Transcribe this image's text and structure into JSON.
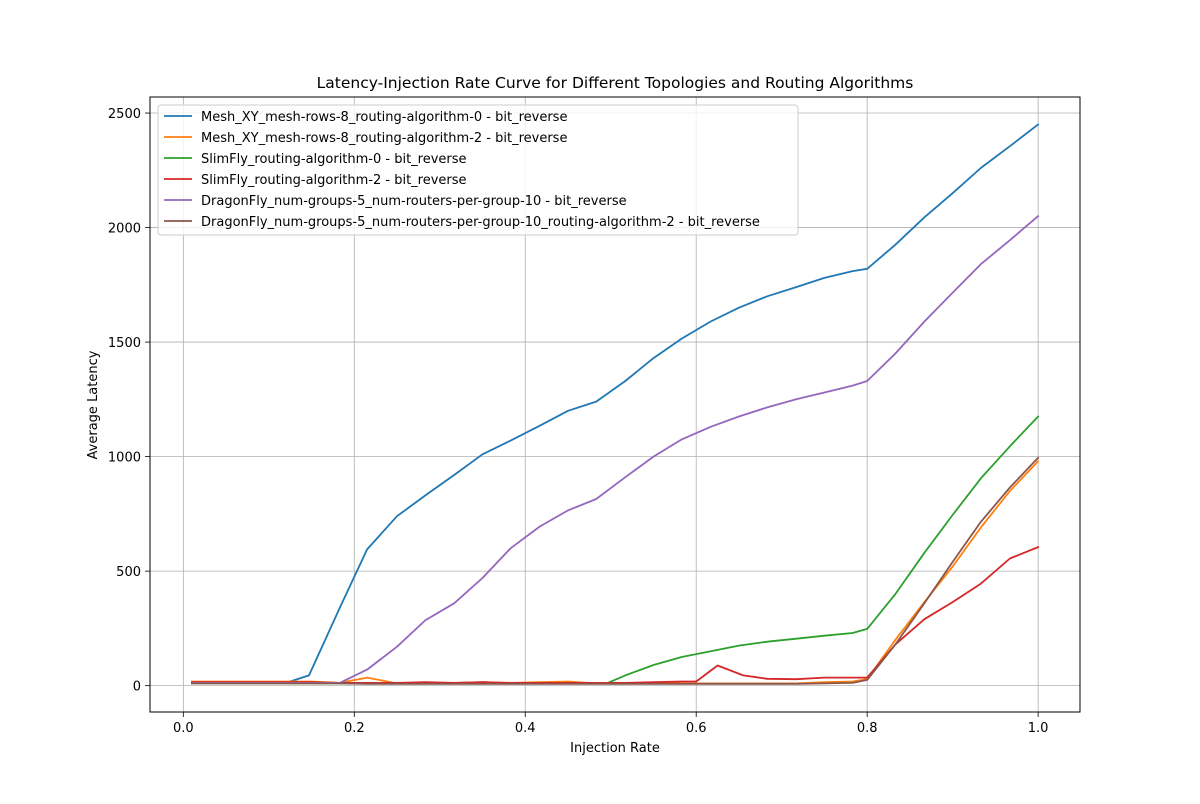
{
  "chart_data": {
    "type": "line",
    "title": "Latency-Injection Rate Curve for Different Topologies and Routing Algorithms",
    "xlabel": "Injection Rate",
    "ylabel": "Average Latency",
    "xlim": [
      -0.039,
      1.049
    ],
    "ylim": [
      -115,
      2570
    ],
    "xticks": [
      0.0,
      0.2,
      0.4,
      0.6,
      0.8,
      1.0
    ],
    "xtick_labels": [
      "0.0",
      "0.2",
      "0.4",
      "0.6",
      "0.8",
      "1.0"
    ],
    "yticks": [
      0,
      500,
      1000,
      1500,
      2000,
      2500
    ],
    "ytick_labels": [
      "0",
      "500",
      "1000",
      "1500",
      "2000",
      "2500"
    ],
    "grid": true,
    "legend_position": "upper-left",
    "x": [
      0.01,
      0.0478,
      0.0856,
      0.1233,
      0.1611,
      0.1989,
      0.2367,
      0.2744,
      0.3122,
      0.35,
      0.3878,
      0.4256,
      0.4633,
      0.5011,
      0.5389,
      0.5767,
      0.6144,
      0.6522,
      0.69,
      0.7278,
      0.7656,
      0.8033,
      0.8411,
      0.8789,
      0.9167,
      0.9544,
      0.9922
    ],
    "series": [
      {
        "name": "Mesh_XY_mesh-rows-8_routing-algorithm-0 - bit_reverse",
        "color": "#1f77b4",
        "x": [
          0.01,
          0.05,
          0.09,
          0.12,
          0.147,
          0.183,
          0.215,
          0.25,
          0.283,
          0.317,
          0.35,
          0.383,
          0.417,
          0.45,
          0.483,
          0.517,
          0.55,
          0.583,
          0.617,
          0.65,
          0.683,
          0.717,
          0.75,
          0.783,
          0.8,
          0.833,
          0.867,
          0.9,
          0.933,
          0.967,
          1.0
        ],
        "values": [
          12,
          12,
          12,
          12,
          45,
          340,
          595,
          740,
          830,
          920,
          1010,
          1070,
          1135,
          1200,
          1240,
          1330,
          1430,
          1515,
          1590,
          1650,
          1700,
          1740,
          1780,
          1810,
          1820,
          1925,
          2045,
          2150,
          2260,
          2355,
          2450
        ]
      },
      {
        "name": "Mesh_XY_mesh-rows-8_routing-algorithm-2 - bit_reverse",
        "color": "#ff7f0e",
        "x": [
          0.01,
          0.05,
          0.09,
          0.12,
          0.15,
          0.183,
          0.215,
          0.25,
          0.283,
          0.317,
          0.35,
          0.383,
          0.417,
          0.45,
          0.483,
          0.517,
          0.55,
          0.583,
          0.617,
          0.65,
          0.683,
          0.717,
          0.75,
          0.783,
          0.8,
          0.833,
          0.867,
          0.9,
          0.933,
          0.967,
          1.0
        ],
        "values": [
          18,
          18,
          18,
          18,
          18,
          12,
          35,
          10,
          12,
          12,
          15,
          12,
          15,
          18,
          10,
          12,
          12,
          10,
          10,
          10,
          10,
          10,
          15,
          18,
          28,
          200,
          365,
          520,
          690,
          850,
          980
        ]
      },
      {
        "name": "SlimFly_routing-algorithm-0 - bit_reverse",
        "color": "#2ca02c",
        "x": [
          0.01,
          0.05,
          0.09,
          0.12,
          0.15,
          0.183,
          0.215,
          0.25,
          0.283,
          0.317,
          0.35,
          0.383,
          0.417,
          0.45,
          0.483,
          0.495,
          0.517,
          0.55,
          0.583,
          0.617,
          0.65,
          0.683,
          0.717,
          0.75,
          0.783,
          0.8,
          0.833,
          0.867,
          0.9,
          0.933,
          0.967,
          1.0
        ],
        "values": [
          10,
          10,
          10,
          10,
          10,
          10,
          10,
          10,
          10,
          10,
          10,
          10,
          10,
          10,
          10,
          10,
          45,
          90,
          125,
          150,
          175,
          192,
          205,
          218,
          230,
          248,
          400,
          580,
          745,
          905,
          1045,
          1175
        ]
      },
      {
        "name": "SlimFly_routing-algorithm-2 - bit_reverse",
        "color": "#d62728",
        "x": [
          0.01,
          0.05,
          0.09,
          0.12,
          0.15,
          0.183,
          0.215,
          0.25,
          0.283,
          0.317,
          0.35,
          0.383,
          0.417,
          0.45,
          0.483,
          0.517,
          0.55,
          0.583,
          0.6,
          0.625,
          0.655,
          0.683,
          0.717,
          0.75,
          0.783,
          0.8,
          0.833,
          0.867,
          0.9,
          0.933,
          0.967,
          1.0
        ],
        "values": [
          15,
          15,
          15,
          15,
          15,
          12,
          12,
          12,
          15,
          12,
          15,
          12,
          12,
          12,
          12,
          12,
          15,
          18,
          18,
          88,
          45,
          30,
          28,
          35,
          35,
          35,
          180,
          290,
          365,
          445,
          555,
          605
        ]
      },
      {
        "name": "DragonFly_num-groups-5_num-routers-per-group-10 - bit_reverse",
        "color": "#9467bd",
        "x": [
          0.01,
          0.05,
          0.09,
          0.12,
          0.15,
          0.183,
          0.215,
          0.25,
          0.283,
          0.317,
          0.35,
          0.383,
          0.417,
          0.45,
          0.483,
          0.517,
          0.55,
          0.583,
          0.617,
          0.65,
          0.683,
          0.717,
          0.75,
          0.783,
          0.8,
          0.833,
          0.867,
          0.9,
          0.933,
          0.967,
          1.0
        ],
        "values": [
          12,
          12,
          12,
          12,
          12,
          12,
          70,
          170,
          285,
          360,
          470,
          600,
          695,
          765,
          815,
          910,
          1000,
          1075,
          1130,
          1175,
          1215,
          1250,
          1280,
          1310,
          1330,
          1450,
          1590,
          1715,
          1840,
          1945,
          2050
        ]
      },
      {
        "name": "DragonFly_num-groups-5_num-routers-per-group-10_routing-algorithm-2 - bit_reverse",
        "color": "#8c564b",
        "x": [
          0.01,
          0.05,
          0.09,
          0.12,
          0.15,
          0.183,
          0.215,
          0.25,
          0.283,
          0.317,
          0.35,
          0.383,
          0.417,
          0.45,
          0.483,
          0.517,
          0.55,
          0.583,
          0.617,
          0.65,
          0.683,
          0.717,
          0.75,
          0.783,
          0.8,
          0.833,
          0.867,
          0.9,
          0.933,
          0.967,
          1.0
        ],
        "values": [
          10,
          10,
          10,
          10,
          10,
          10,
          8,
          8,
          8,
          8,
          8,
          8,
          8,
          8,
          8,
          8,
          8,
          8,
          8,
          8,
          8,
          8,
          10,
          12,
          25,
          180,
          360,
          540,
          715,
          865,
          995
        ]
      }
    ]
  }
}
